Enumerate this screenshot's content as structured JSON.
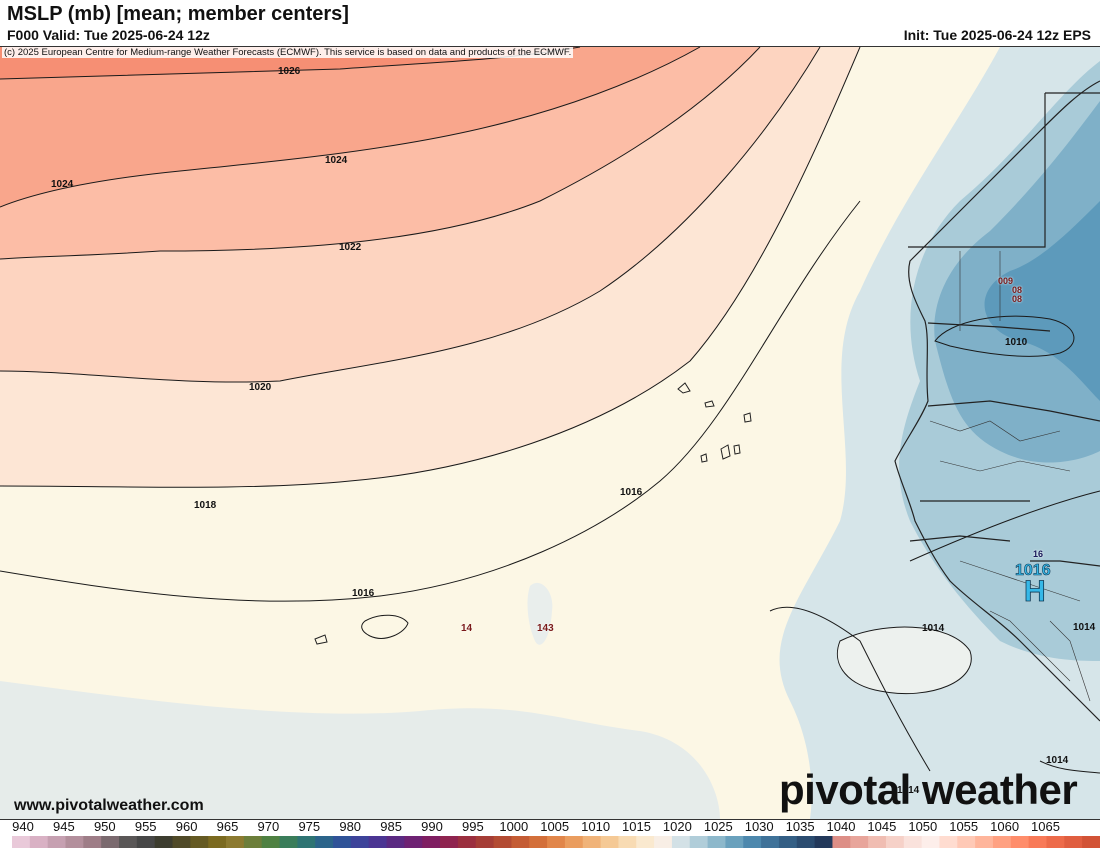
{
  "header": {
    "title": "MSLP (mb) [mean; member centers]",
    "valid": "F000 Valid: Tue 2025-06-24 12z",
    "init": "Init: Tue 2025-06-24 12z EPS"
  },
  "copyright": "(c) 2025 European Centre for Medium-range Weather Forecasts (ECMWF). This service is based on data and products of the ECMWF.",
  "contour_labels": [
    "1026",
    "1024",
    "1024",
    "1022",
    "1020",
    "1018",
    "1016",
    "1016",
    "1014",
    "1014",
    "1014",
    "1014",
    "1010"
  ],
  "member_center_labels": [
    "14",
    "143",
    "009",
    "08",
    "08",
    "16"
  ],
  "high_center": {
    "letter": "H",
    "value": "1016"
  },
  "footer": {
    "site": "www.pivotalweather.com",
    "logo": "pivotal weather"
  },
  "colorbar": {
    "ticks": [
      "940",
      "945",
      "950",
      "955",
      "960",
      "965",
      "970",
      "975",
      "980",
      "985",
      "990",
      "995",
      "1000",
      "1005",
      "1010",
      "1015",
      "1020",
      "1025",
      "1030",
      "1035",
      "1040",
      "1045",
      "1050",
      "1055",
      "1060",
      "1065"
    ],
    "colors": [
      "#e9c9d9",
      "#d9b1c4",
      "#c6a0b1",
      "#b38f9c",
      "#9e7d87",
      "#7b6a6f",
      "#5a5757",
      "#474747",
      "#3d3d2f",
      "#504a28",
      "#655a23",
      "#7b6a20",
      "#8c7a30",
      "#6c7e3a",
      "#4f8142",
      "#3a7d5a",
      "#2e7473",
      "#2b648a",
      "#2f5398",
      "#3d439a",
      "#4b3593",
      "#5b2a82",
      "#6e2273",
      "#7f1e62",
      "#8f244f",
      "#9b2f3f",
      "#a53d36",
      "#b34b33",
      "#c45c34",
      "#d36f3a",
      "#e1864a",
      "#ea9d5f",
      "#f0b379",
      "#f5c995",
      "#f8dbb3",
      "#fae9cf",
      "#f8eee5",
      "#d3e1e6",
      "#b0cdd9",
      "#8db8cb",
      "#6aa1bd",
      "#4d88ad",
      "#3f7299",
      "#345f85",
      "#2b4c70",
      "#23395b",
      "#dd8e86",
      "#e8a59b",
      "#f0bdb2",
      "#f6d1c8",
      "#fae2dc",
      "#fdeeea",
      "#ffdcd0",
      "#ffc9b6",
      "#ffb59b",
      "#ffa182",
      "#ff8d6b",
      "#f87a58",
      "#ed6b4a",
      "#e05e40",
      "#d25336"
    ]
  },
  "colors": {
    "high_pressure_deep": "#f47f63",
    "high_pressure_light": "#fdf8e7",
    "low_pressure_light": "#cfe1e6",
    "low_pressure_deep": "#4f93b4",
    "high_center_text": "#35b8e8"
  }
}
